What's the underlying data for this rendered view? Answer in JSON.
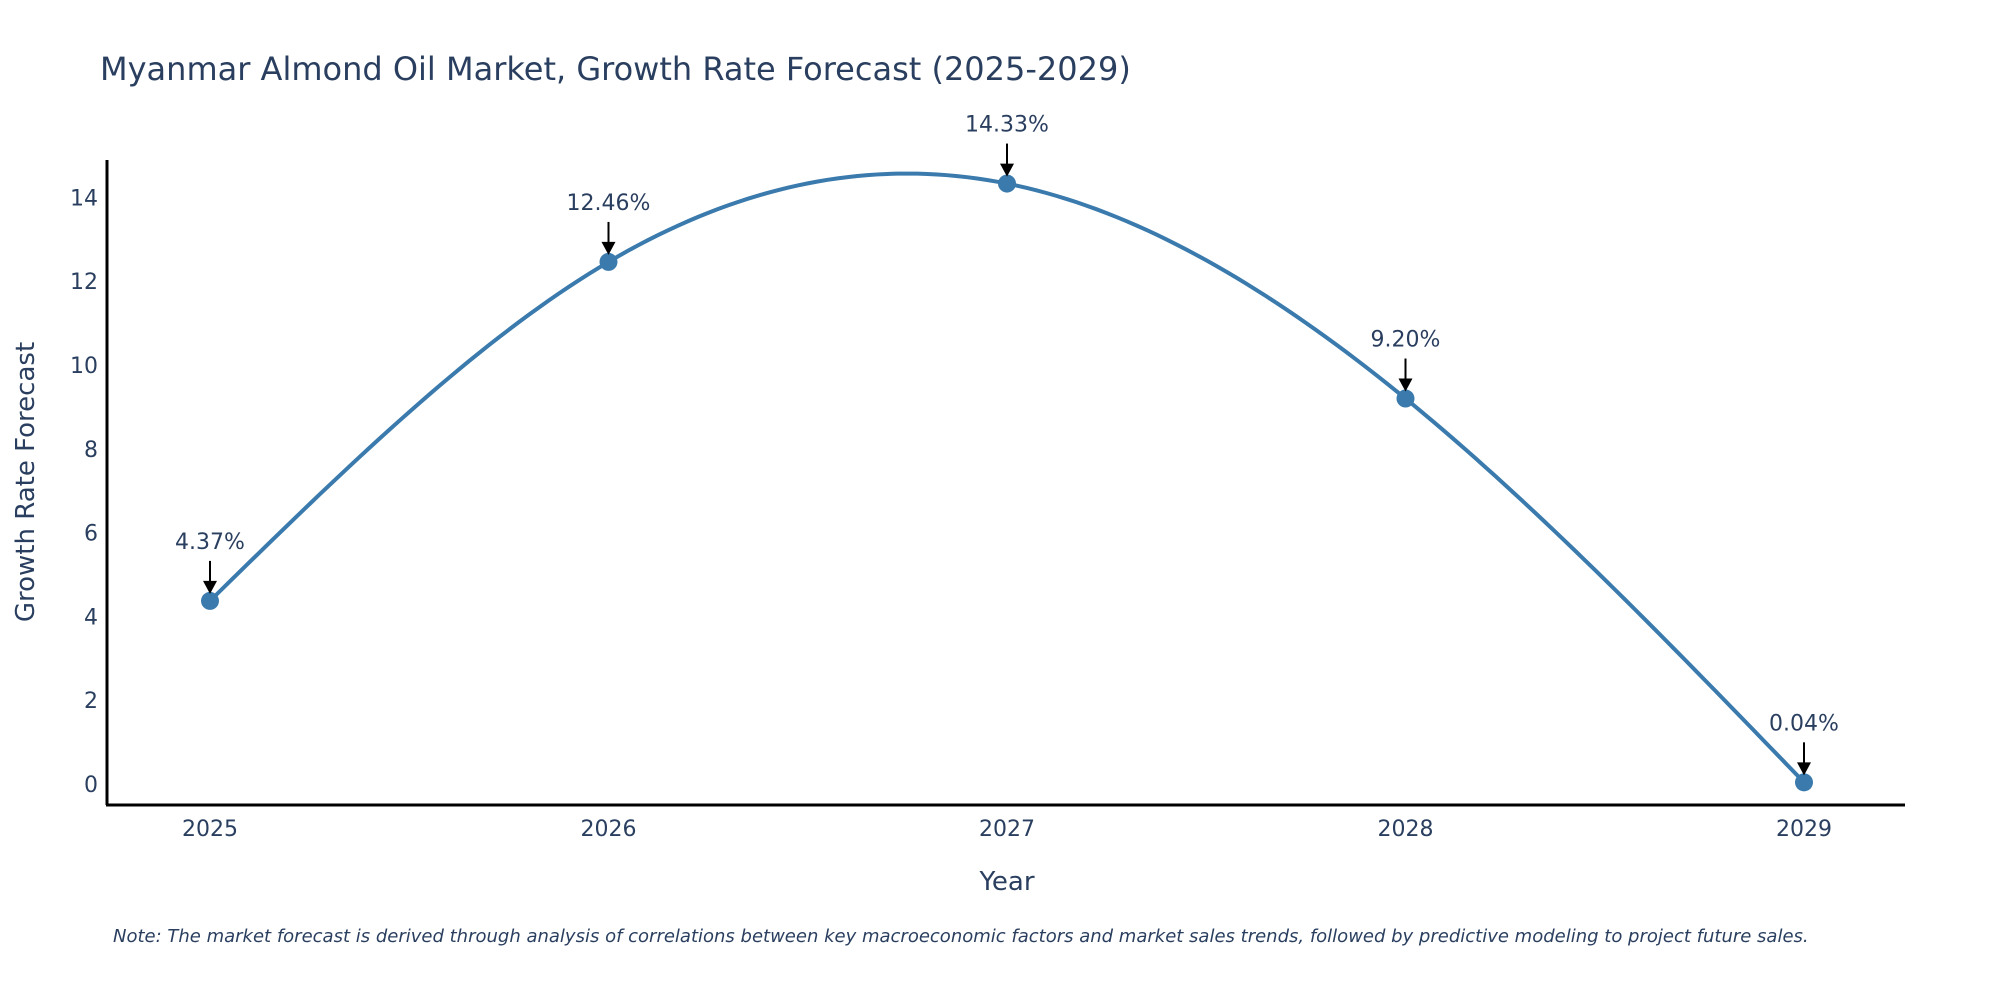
{
  "chart_data": {
    "type": "line",
    "title": "Myanmar Almond Oil Market, Growth Rate Forecast (2025-2029)",
    "xlabel": "Year",
    "ylabel": "Growth Rate Forecast",
    "categories": [
      "2025",
      "2026",
      "2027",
      "2028",
      "2029"
    ],
    "values": [
      4.37,
      12.46,
      14.33,
      9.2,
      0.04
    ],
    "annotations": [
      "4.37%",
      "12.46%",
      "14.33%",
      "9.20%",
      "0.04%"
    ],
    "y_ticks": [
      0,
      2,
      4,
      6,
      8,
      10,
      12,
      14
    ],
    "ylim": [
      -0.5,
      14.8
    ],
    "line_shape": "spline",
    "grid": false,
    "legend": "none",
    "line_color": "#3a7aad",
    "marker_color": "#3a7aad",
    "note": "Note: The market forecast is derived through analysis of correlations between key macroeconomic factors and market sales trends, followed by predictive modeling to project future sales."
  }
}
